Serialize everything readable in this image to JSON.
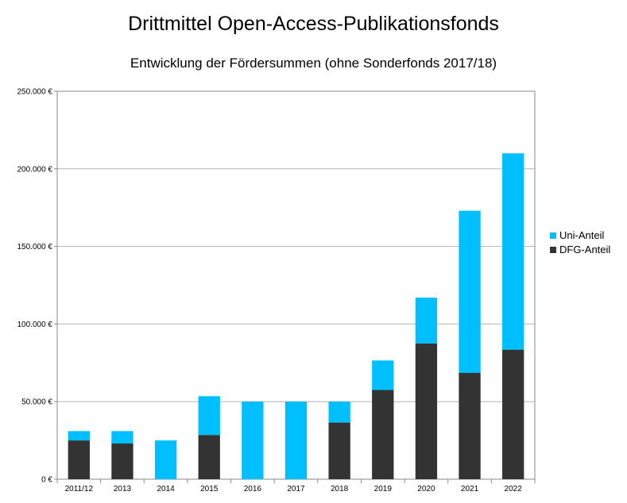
{
  "chart_data": {
    "type": "bar",
    "stacked": true,
    "title": "Drittmittel Open-Access-Publikationsfonds",
    "subtitle": "Entwicklung der Fördersummen (ohne Sonderfonds 2017/18)",
    "xlabel": "",
    "ylabel": "",
    "ylim": [
      0,
      250000
    ],
    "yticks": [
      0,
      50000,
      100000,
      150000,
      200000,
      250000
    ],
    "ytick_labels": [
      "0 €",
      "50.000 €",
      "100.000 €",
      "150.000 €",
      "200.000 €",
      "250.000 €"
    ],
    "grid": true,
    "legend_position": "right",
    "categories": [
      "2011/12",
      "2013",
      "2014",
      "2015",
      "2016",
      "2017",
      "2018",
      "2019",
      "2020",
      "2021",
      "2022"
    ],
    "series": [
      {
        "name": "DFG-Anteil",
        "color": "#333333",
        "values": [
          25000,
          23000,
          0,
          28500,
          0,
          0,
          36500,
          57500,
          87500,
          68500,
          83500
        ]
      },
      {
        "name": "Uni-Anteil",
        "color": "#00bfff",
        "values": [
          6000,
          8000,
          25000,
          25000,
          50000,
          50000,
          13500,
          19000,
          29500,
          104500,
          126500
        ]
      }
    ],
    "legend_order": [
      "Uni-Anteil",
      "DFG-Anteil"
    ]
  }
}
